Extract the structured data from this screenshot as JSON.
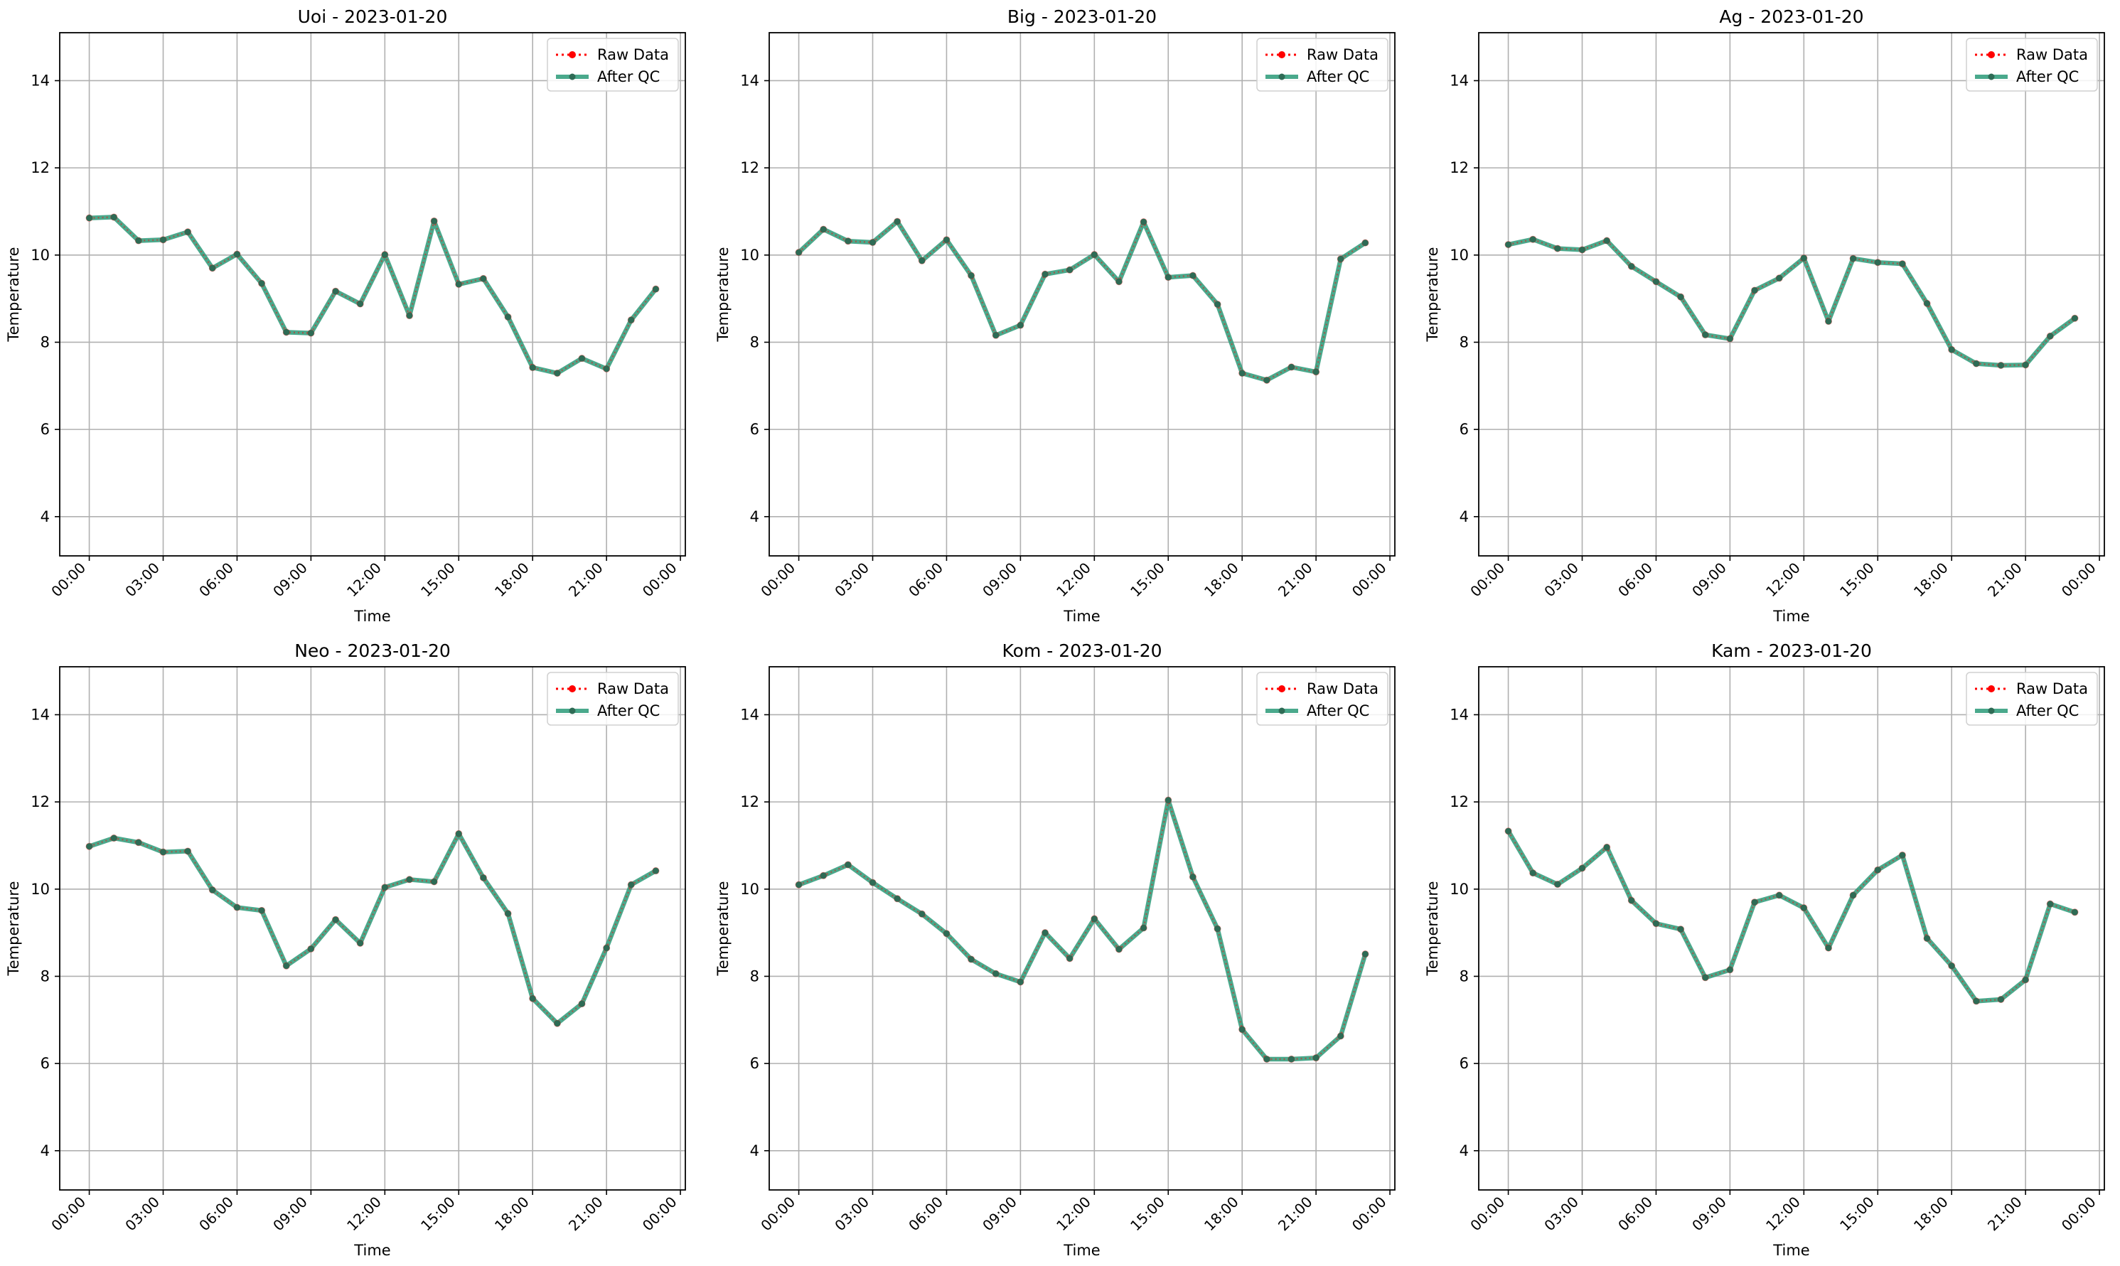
{
  "chart_data": [
    {
      "type": "line",
      "title": "Uoi - 2023-01-20",
      "xlabel": "Time",
      "ylabel": "Temperature",
      "x_tick_labels": [
        "00:00",
        "03:00",
        "06:00",
        "09:00",
        "12:00",
        "15:00",
        "18:00",
        "21:00",
        "00:00"
      ],
      "y_ticks": [
        4,
        6,
        8,
        10,
        12,
        14
      ],
      "xlim_hours": [
        -1.2,
        24.2
      ],
      "ylim": [
        3.1,
        15.1
      ],
      "grid": true,
      "legend_position": "top-right",
      "x": [
        "00:00",
        "01:00",
        "02:00",
        "03:00",
        "04:00",
        "05:00",
        "06:00",
        "07:00",
        "08:00",
        "09:00",
        "10:00",
        "11:00",
        "12:00",
        "13:00",
        "14:00",
        "15:00",
        "16:00",
        "17:00",
        "18:00",
        "19:00",
        "20:00",
        "21:00",
        "22:00",
        "23:00"
      ],
      "series": [
        {
          "name": "Raw Data",
          "color": "#ff0000",
          "style": "dotted",
          "values": [
            10.85,
            10.87,
            10.33,
            10.35,
            10.53,
            9.7,
            10.02,
            9.35,
            8.23,
            8.21,
            9.17,
            8.88,
            10.01,
            8.61,
            10.78,
            9.33,
            9.46,
            8.58,
            7.42,
            7.29,
            7.63,
            7.39,
            8.51,
            9.22
          ]
        },
        {
          "name": "After QC",
          "color": "#2a9a78",
          "style": "solid",
          "values": [
            10.85,
            10.87,
            10.33,
            10.35,
            10.53,
            9.7,
            10.02,
            9.35,
            8.23,
            8.21,
            9.17,
            8.88,
            10.01,
            8.61,
            10.78,
            9.33,
            9.46,
            8.58,
            7.42,
            7.29,
            7.63,
            7.39,
            8.51,
            9.22
          ]
        }
      ]
    },
    {
      "type": "line",
      "title": "Big - 2023-01-20",
      "xlabel": "Time",
      "ylabel": "Temperature",
      "x_tick_labels": [
        "00:00",
        "03:00",
        "06:00",
        "09:00",
        "12:00",
        "15:00",
        "18:00",
        "21:00",
        "00:00"
      ],
      "y_ticks": [
        4,
        6,
        8,
        10,
        12,
        14
      ],
      "xlim_hours": [
        -1.2,
        24.2
      ],
      "ylim": [
        3.1,
        15.1
      ],
      "grid": true,
      "legend_position": "top-right",
      "x": [
        "00:00",
        "01:00",
        "02:00",
        "03:00",
        "04:00",
        "05:00",
        "06:00",
        "07:00",
        "08:00",
        "09:00",
        "10:00",
        "11:00",
        "12:00",
        "13:00",
        "14:00",
        "15:00",
        "16:00",
        "17:00",
        "18:00",
        "19:00",
        "20:00",
        "21:00",
        "22:00",
        "23:00"
      ],
      "series": [
        {
          "name": "Raw Data",
          "color": "#ff0000",
          "style": "dotted",
          "values": [
            10.06,
            10.59,
            10.32,
            10.29,
            10.77,
            9.87,
            10.35,
            9.53,
            8.16,
            8.39,
            9.56,
            9.66,
            10.01,
            9.39,
            10.76,
            9.49,
            9.53,
            8.87,
            7.29,
            7.13,
            7.43,
            7.32,
            9.91,
            10.28
          ]
        },
        {
          "name": "After QC",
          "color": "#2a9a78",
          "style": "solid",
          "values": [
            10.06,
            10.59,
            10.32,
            10.29,
            10.77,
            9.87,
            10.35,
            9.53,
            8.16,
            8.39,
            9.56,
            9.66,
            10.01,
            9.39,
            10.76,
            9.49,
            9.53,
            8.87,
            7.29,
            7.13,
            7.43,
            7.32,
            9.91,
            10.28
          ]
        }
      ]
    },
    {
      "type": "line",
      "title": "Ag - 2023-01-20",
      "xlabel": "Time",
      "ylabel": "Temperature",
      "x_tick_labels": [
        "00:00",
        "03:00",
        "06:00",
        "09:00",
        "12:00",
        "15:00",
        "18:00",
        "21:00",
        "00:00"
      ],
      "y_ticks": [
        4,
        6,
        8,
        10,
        12,
        14
      ],
      "xlim_hours": [
        -1.2,
        24.2
      ],
      "ylim": [
        3.1,
        15.1
      ],
      "grid": true,
      "legend_position": "top-right",
      "x": [
        "00:00",
        "01:00",
        "02:00",
        "03:00",
        "04:00",
        "05:00",
        "06:00",
        "07:00",
        "08:00",
        "09:00",
        "10:00",
        "11:00",
        "12:00",
        "13:00",
        "14:00",
        "15:00",
        "16:00",
        "17:00",
        "18:00",
        "19:00",
        "20:00",
        "21:00",
        "22:00",
        "23:00"
      ],
      "series": [
        {
          "name": "Raw Data",
          "color": "#ff0000",
          "style": "dotted",
          "values": [
            10.24,
            10.36,
            10.15,
            10.12,
            10.33,
            9.74,
            9.39,
            9.04,
            8.17,
            8.08,
            9.19,
            9.47,
            9.93,
            8.48,
            9.92,
            9.83,
            9.8,
            8.89,
            7.83,
            7.51,
            7.47,
            7.48,
            8.14,
            8.55
          ]
        },
        {
          "name": "After QC",
          "color": "#2a9a78",
          "style": "solid",
          "values": [
            10.24,
            10.36,
            10.15,
            10.12,
            10.33,
            9.74,
            9.39,
            9.04,
            8.17,
            8.08,
            9.19,
            9.47,
            9.93,
            8.48,
            9.92,
            9.83,
            9.8,
            8.89,
            7.83,
            7.51,
            7.47,
            7.48,
            8.14,
            8.55
          ]
        }
      ]
    },
    {
      "type": "line",
      "title": "Neo - 2023-01-20",
      "xlabel": "Time",
      "ylabel": "Temperature",
      "x_tick_labels": [
        "00:00",
        "03:00",
        "06:00",
        "09:00",
        "12:00",
        "15:00",
        "18:00",
        "21:00",
        "00:00"
      ],
      "y_ticks": [
        4,
        6,
        8,
        10,
        12,
        14
      ],
      "xlim_hours": [
        -1.2,
        24.2
      ],
      "ylim": [
        3.1,
        15.1
      ],
      "grid": true,
      "legend_position": "top-right",
      "x": [
        "00:00",
        "01:00",
        "02:00",
        "03:00",
        "04:00",
        "05:00",
        "06:00",
        "07:00",
        "08:00",
        "09:00",
        "10:00",
        "11:00",
        "12:00",
        "13:00",
        "14:00",
        "15:00",
        "16:00",
        "17:00",
        "18:00",
        "19:00",
        "20:00",
        "21:00",
        "22:00",
        "23:00"
      ],
      "series": [
        {
          "name": "Raw Data",
          "color": "#ff0000",
          "style": "dotted",
          "values": [
            10.98,
            11.17,
            11.07,
            10.85,
            10.87,
            9.98,
            9.58,
            9.51,
            8.24,
            8.63,
            9.3,
            8.76,
            10.04,
            10.22,
            10.17,
            11.27,
            10.26,
            9.44,
            7.49,
            6.92,
            7.37,
            8.65,
            10.1,
            10.42
          ]
        },
        {
          "name": "After QC",
          "color": "#2a9a78",
          "style": "solid",
          "values": [
            10.98,
            11.17,
            11.07,
            10.85,
            10.87,
            9.98,
            9.58,
            9.51,
            8.24,
            8.63,
            9.3,
            8.76,
            10.04,
            10.22,
            10.17,
            11.27,
            10.26,
            9.44,
            7.49,
            6.92,
            7.37,
            8.65,
            10.1,
            10.42
          ]
        }
      ]
    },
    {
      "type": "line",
      "title": "Kom - 2023-01-20",
      "xlabel": "Time",
      "ylabel": "Temperature",
      "x_tick_labels": [
        "00:00",
        "03:00",
        "06:00",
        "09:00",
        "12:00",
        "15:00",
        "18:00",
        "21:00",
        "00:00"
      ],
      "y_ticks": [
        4,
        6,
        8,
        10,
        12,
        14
      ],
      "xlim_hours": [
        -1.2,
        24.2
      ],
      "ylim": [
        3.1,
        15.1
      ],
      "grid": true,
      "legend_position": "top-right",
      "x": [
        "00:00",
        "01:00",
        "02:00",
        "03:00",
        "04:00",
        "05:00",
        "06:00",
        "07:00",
        "08:00",
        "09:00",
        "10:00",
        "11:00",
        "12:00",
        "13:00",
        "14:00",
        "15:00",
        "16:00",
        "17:00",
        "18:00",
        "19:00",
        "20:00",
        "21:00",
        "22:00",
        "23:00"
      ],
      "series": [
        {
          "name": "Raw Data",
          "color": "#ff0000",
          "style": "dotted",
          "values": [
            10.1,
            10.31,
            10.56,
            10.15,
            9.78,
            9.43,
            8.98,
            8.39,
            8.06,
            7.87,
            9.0,
            8.41,
            9.32,
            8.62,
            9.11,
            12.04,
            10.28,
            9.09,
            6.78,
            6.1,
            6.1,
            6.13,
            6.63,
            8.51
          ]
        },
        {
          "name": "After QC",
          "color": "#2a9a78",
          "style": "solid",
          "values": [
            10.1,
            10.31,
            10.56,
            10.15,
            9.78,
            9.43,
            8.98,
            8.39,
            8.06,
            7.87,
            9.0,
            8.41,
            9.32,
            8.62,
            9.11,
            12.04,
            10.28,
            9.09,
            6.78,
            6.1,
            6.1,
            6.13,
            6.63,
            8.51
          ]
        }
      ]
    },
    {
      "type": "line",
      "title": "Kam - 2023-01-20",
      "xlabel": "Time",
      "ylabel": "Temperature",
      "x_tick_labels": [
        "00:00",
        "03:00",
        "06:00",
        "09:00",
        "12:00",
        "15:00",
        "18:00",
        "21:00",
        "00:00"
      ],
      "y_ticks": [
        4,
        6,
        8,
        10,
        12,
        14
      ],
      "xlim_hours": [
        -1.2,
        24.2
      ],
      "ylim": [
        3.1,
        15.1
      ],
      "grid": true,
      "legend_position": "top-right",
      "x": [
        "00:00",
        "01:00",
        "02:00",
        "03:00",
        "04:00",
        "05:00",
        "06:00",
        "07:00",
        "08:00",
        "09:00",
        "10:00",
        "11:00",
        "12:00",
        "13:00",
        "14:00",
        "15:00",
        "16:00",
        "17:00",
        "18:00",
        "19:00",
        "20:00",
        "21:00",
        "22:00",
        "23:00"
      ],
      "series": [
        {
          "name": "Raw Data",
          "color": "#ff0000",
          "style": "dotted",
          "values": [
            11.33,
            10.37,
            10.11,
            10.48,
            10.96,
            9.74,
            9.21,
            9.08,
            7.97,
            8.15,
            9.7,
            9.86,
            9.57,
            8.65,
            9.86,
            10.44,
            10.78,
            8.87,
            8.24,
            7.43,
            7.47,
            7.92,
            9.66,
            9.47
          ]
        },
        {
          "name": "After QC",
          "color": "#2a9a78",
          "style": "solid",
          "values": [
            11.33,
            10.37,
            10.11,
            10.48,
            10.96,
            9.74,
            9.21,
            9.08,
            7.97,
            8.15,
            9.7,
            9.86,
            9.57,
            8.65,
            9.86,
            10.44,
            10.78,
            8.87,
            8.24,
            7.43,
            7.47,
            7.92,
            9.66,
            9.47
          ]
        }
      ]
    }
  ]
}
